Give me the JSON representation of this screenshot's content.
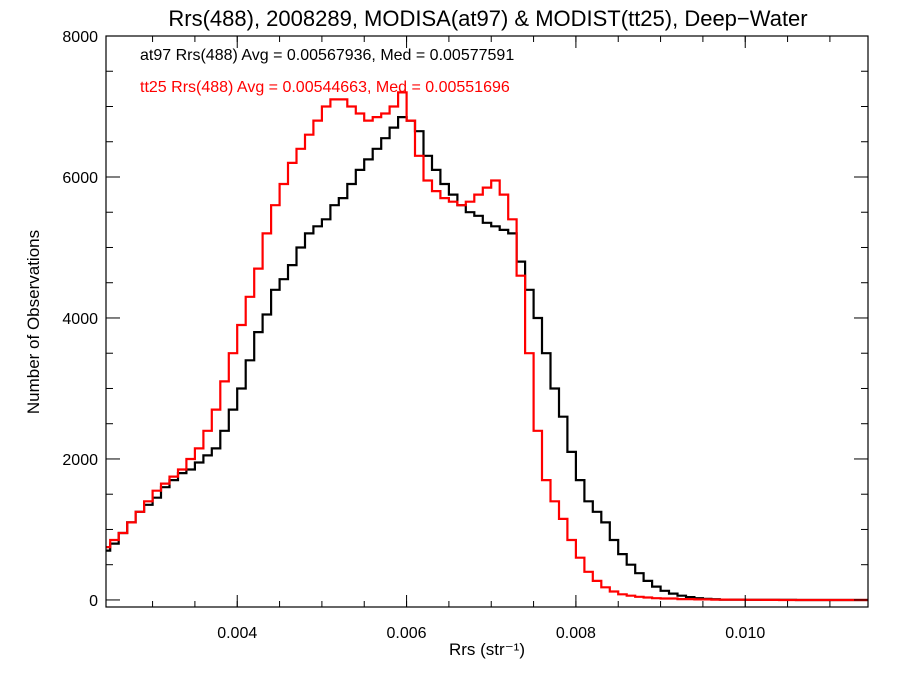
{
  "chart_data": {
    "type": "line",
    "step": true,
    "title": "Rrs(488), 2008289, MODISA(at97) & MODIST(tt25), Deep−Water",
    "xlabel": "Rrs (str⁻¹)",
    "ylabel": "Number of Observations",
    "xlim": [
      0.00245,
      0.01145
    ],
    "ylim": [
      -100,
      8000
    ],
    "xticks": [
      0.004,
      0.006,
      0.008,
      0.01
    ],
    "xtick_labels": [
      "0.004",
      "0.006",
      "0.008",
      "0.010"
    ],
    "yticks": [
      0,
      2000,
      4000,
      6000,
      8000
    ],
    "ytick_labels": [
      "0",
      "2000",
      "4000",
      "6000",
      "8000"
    ],
    "grid": false,
    "legend_position": "top-left",
    "series": [
      {
        "name": "at97",
        "annotation": "at97 Rrs(488) Avg = 0.00567936, Med = 0.00577591",
        "color": "#000000",
        "x": [
          0.00245,
          0.0025,
          0.0026,
          0.0027,
          0.0028,
          0.0029,
          0.003,
          0.0031,
          0.0032,
          0.0033,
          0.0034,
          0.0035,
          0.0036,
          0.0037,
          0.0038,
          0.0039,
          0.004,
          0.0041,
          0.0042,
          0.0043,
          0.0044,
          0.0045,
          0.0046,
          0.0047,
          0.0048,
          0.0049,
          0.005,
          0.0051,
          0.0052,
          0.0053,
          0.0054,
          0.0055,
          0.0056,
          0.0057,
          0.0058,
          0.0059,
          0.006,
          0.0061,
          0.0062,
          0.0063,
          0.0064,
          0.0065,
          0.0066,
          0.0067,
          0.0068,
          0.0069,
          0.007,
          0.0071,
          0.0072,
          0.0073,
          0.0074,
          0.0075,
          0.0076,
          0.0077,
          0.0078,
          0.0079,
          0.008,
          0.0081,
          0.0082,
          0.0083,
          0.0084,
          0.0085,
          0.0086,
          0.0087,
          0.0088,
          0.0089,
          0.009,
          0.0091,
          0.0092,
          0.0093,
          0.0094,
          0.0095,
          0.0096,
          0.0097,
          0.0098,
          0.0099,
          0.01,
          0.0102,
          0.0104,
          0.0106,
          0.0108,
          0.011,
          0.0112,
          0.01145
        ],
        "y": [
          700,
          800,
          950,
          1100,
          1250,
          1350,
          1450,
          1600,
          1700,
          1800,
          1850,
          1950,
          2050,
          2150,
          2400,
          2700,
          3000,
          3400,
          3800,
          4050,
          4400,
          4550,
          4750,
          5000,
          5200,
          5300,
          5400,
          5600,
          5700,
          5900,
          6100,
          6250,
          6400,
          6550,
          6700,
          6850,
          6800,
          6650,
          6300,
          6100,
          5900,
          5750,
          5600,
          5500,
          5450,
          5350,
          5300,
          5250,
          5200,
          4800,
          4400,
          4000,
          3500,
          3000,
          2600,
          2100,
          1700,
          1400,
          1250,
          1100,
          850,
          650,
          500,
          380,
          270,
          190,
          130,
          90,
          60,
          40,
          25,
          15,
          10,
          5,
          4,
          3,
          2,
          1,
          1,
          0,
          0,
          0,
          0,
          0
        ]
      },
      {
        "name": "tt25",
        "annotation": "tt25 Rrs(488) Avg = 0.00544663, Med = 0.00551696",
        "color": "#ff0000",
        "x": [
          0.00245,
          0.0025,
          0.0026,
          0.0027,
          0.0028,
          0.0029,
          0.003,
          0.0031,
          0.0032,
          0.0033,
          0.0034,
          0.0035,
          0.0036,
          0.0037,
          0.0038,
          0.0039,
          0.004,
          0.0041,
          0.0042,
          0.0043,
          0.0044,
          0.0045,
          0.0046,
          0.0047,
          0.0048,
          0.0049,
          0.005,
          0.0051,
          0.0052,
          0.0053,
          0.0054,
          0.0055,
          0.0056,
          0.0057,
          0.0058,
          0.0059,
          0.006,
          0.0061,
          0.0062,
          0.0063,
          0.0064,
          0.0065,
          0.0066,
          0.0067,
          0.0068,
          0.0069,
          0.007,
          0.0071,
          0.0072,
          0.0073,
          0.0074,
          0.0075,
          0.0076,
          0.0077,
          0.0078,
          0.0079,
          0.008,
          0.0081,
          0.0082,
          0.0083,
          0.0084,
          0.0085,
          0.0086,
          0.0087,
          0.0088,
          0.0089,
          0.009,
          0.0092,
          0.0094,
          0.0096,
          0.0098,
          0.01,
          0.0102,
          0.0104,
          0.0106,
          0.0108,
          0.011,
          0.0112,
          0.01145
        ],
        "y": [
          750,
          850,
          950,
          1100,
          1250,
          1400,
          1550,
          1650,
          1750,
          1850,
          2000,
          2150,
          2400,
          2700,
          3100,
          3500,
          3900,
          4300,
          4700,
          5200,
          5600,
          5900,
          6200,
          6400,
          6600,
          6800,
          7000,
          7100,
          7100,
          7000,
          6900,
          6800,
          6850,
          6900,
          7000,
          7200,
          6800,
          6300,
          5950,
          5800,
          5700,
          5650,
          5600,
          5650,
          5750,
          5850,
          5950,
          5750,
          5400,
          4600,
          3500,
          2400,
          1700,
          1400,
          1150,
          850,
          600,
          400,
          270,
          180,
          120,
          80,
          60,
          45,
          35,
          25,
          20,
          12,
          8,
          5,
          3,
          2,
          1,
          0,
          0,
          0,
          0,
          0,
          0
        ]
      }
    ]
  }
}
